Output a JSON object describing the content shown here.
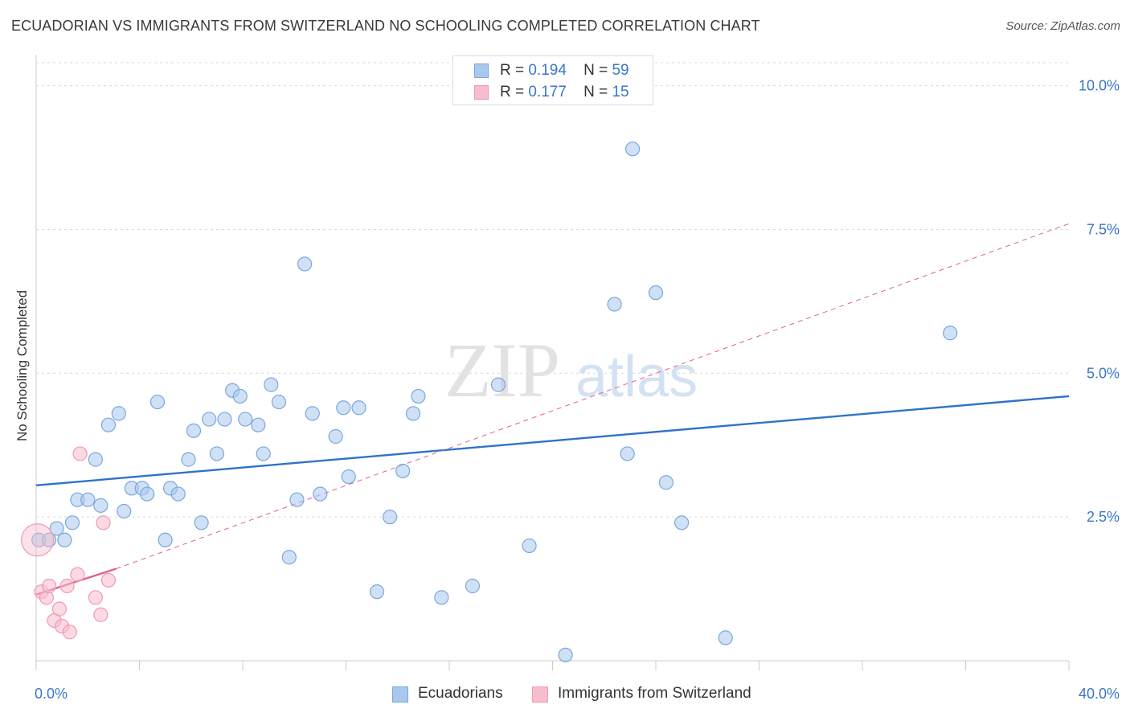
{
  "title": "ECUADORIAN VS IMMIGRANTS FROM SWITZERLAND NO SCHOOLING COMPLETED CORRELATION CHART",
  "source": "Source: ZipAtlas.com",
  "watermark": {
    "zip": "ZIP",
    "atlas": "atlas"
  },
  "colors": {
    "blue_fill": "#aac8ee",
    "blue_stroke": "#7aa7dd",
    "blue_line": "#2f72c8",
    "pink_fill": "#f7bccd",
    "pink_stroke": "#ef9ab3",
    "pink_line": "#e0608a",
    "axis_label": "#3b77c9",
    "grid": "#d9d9d9"
  },
  "legend_top": [
    {
      "r_label": "R =",
      "r": "0.194",
      "n_label": "N =",
      "n": "59"
    },
    {
      "r_label": "R =",
      "r": "0.177",
      "n_label": "N =",
      "n": "15"
    }
  ],
  "chart_data": {
    "type": "scatter",
    "title": "ECUADORIAN VS IMMIGRANTS FROM SWITZERLAND NO SCHOOLING COMPLETED CORRELATION CHART",
    "xlabel": "",
    "ylabel": "No Schooling Completed",
    "xlim": [
      0,
      40
    ],
    "ylim": [
      0,
      10.4
    ],
    "x_tick_labels": [
      "0.0%",
      "40.0%"
    ],
    "y_ticks": [
      2.5,
      5.0,
      7.5,
      10.0
    ],
    "y_tick_labels": [
      "2.5%",
      "5.0%",
      "7.5%",
      "10.0%"
    ],
    "grid": true,
    "legend_placement": "top-center",
    "series": [
      {
        "name": "Ecuadorians",
        "color": "#aac8ee",
        "points": [
          [
            0.1,
            2.1
          ],
          [
            0.5,
            2.1
          ],
          [
            0.8,
            2.3
          ],
          [
            1.1,
            2.1
          ],
          [
            1.4,
            2.4
          ],
          [
            1.6,
            2.8
          ],
          [
            2.0,
            2.8
          ],
          [
            2.3,
            3.5
          ],
          [
            2.5,
            2.7
          ],
          [
            2.8,
            4.1
          ],
          [
            3.2,
            4.3
          ],
          [
            3.4,
            2.6
          ],
          [
            3.7,
            3.0
          ],
          [
            4.1,
            3.0
          ],
          [
            4.3,
            2.9
          ],
          [
            4.7,
            4.5
          ],
          [
            5.0,
            2.1
          ],
          [
            5.2,
            3.0
          ],
          [
            5.5,
            2.9
          ],
          [
            5.9,
            3.5
          ],
          [
            6.1,
            4.0
          ],
          [
            6.4,
            2.4
          ],
          [
            6.7,
            4.2
          ],
          [
            7.0,
            3.6
          ],
          [
            7.3,
            4.2
          ],
          [
            7.6,
            4.7
          ],
          [
            7.9,
            4.6
          ],
          [
            8.1,
            4.2
          ],
          [
            8.6,
            4.1
          ],
          [
            8.8,
            3.6
          ],
          [
            9.1,
            4.8
          ],
          [
            9.4,
            4.5
          ],
          [
            9.8,
            1.8
          ],
          [
            10.1,
            2.8
          ],
          [
            10.4,
            6.9
          ],
          [
            10.7,
            4.3
          ],
          [
            11.0,
            2.9
          ],
          [
            11.6,
            3.9
          ],
          [
            11.9,
            4.4
          ],
          [
            12.1,
            3.2
          ],
          [
            12.5,
            4.4
          ],
          [
            13.2,
            1.2
          ],
          [
            13.7,
            2.5
          ],
          [
            14.2,
            3.3
          ],
          [
            14.6,
            4.3
          ],
          [
            14.8,
            4.6
          ],
          [
            15.7,
            1.1
          ],
          [
            16.9,
            1.3
          ],
          [
            17.9,
            4.8
          ],
          [
            19.1,
            2.0
          ],
          [
            20.5,
            0.1
          ],
          [
            22.4,
            6.2
          ],
          [
            22.9,
            3.6
          ],
          [
            23.1,
            8.9
          ],
          [
            24.0,
            6.4
          ],
          [
            24.4,
            3.1
          ],
          [
            25.0,
            2.4
          ],
          [
            26.7,
            0.4
          ],
          [
            35.4,
            5.7
          ]
        ]
      },
      {
        "name": "Immigrants from Switzerland",
        "color": "#f7bccd",
        "points": [
          [
            0.2,
            1.2
          ],
          [
            0.4,
            1.1
          ],
          [
            0.5,
            1.3
          ],
          [
            0.7,
            0.7
          ],
          [
            0.9,
            0.9
          ],
          [
            1.0,
            0.6
          ],
          [
            1.2,
            1.3
          ],
          [
            1.3,
            0.5
          ],
          [
            1.6,
            1.5
          ],
          [
            1.7,
            3.6
          ],
          [
            2.3,
            1.1
          ],
          [
            2.5,
            0.8
          ],
          [
            2.6,
            2.4
          ],
          [
            2.8,
            1.4
          ],
          [
            0.05,
            2.1
          ]
        ]
      }
    ],
    "trendlines": [
      {
        "series": "Ecuadorians",
        "style": "solid",
        "x": [
          0,
          40
        ],
        "y": [
          3.05,
          4.6
        ]
      },
      {
        "series": "Immigrants from Switzerland",
        "style": "solid",
        "x": [
          0,
          3.1
        ],
        "y": [
          1.15,
          1.6
        ]
      },
      {
        "series": "Immigrants from Switzerland",
        "style": "dashed",
        "x": [
          3.1,
          40
        ],
        "y": [
          1.6,
          7.6
        ]
      }
    ]
  },
  "legend_bottom": [
    {
      "label": "Ecuadorians"
    },
    {
      "label": "Immigrants from Switzerland"
    }
  ]
}
